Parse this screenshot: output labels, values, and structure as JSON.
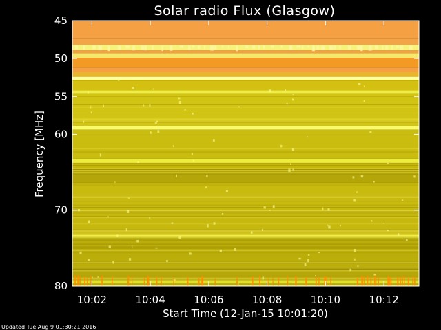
{
  "chart_data": {
    "type": "heatmap",
    "title": "Solar radio Flux (Glasgow)",
    "xlabel": "Start Time (12-Jan-15 10:01:20)",
    "ylabel": "Frequency [MHz]",
    "x_unit": "minutes of day",
    "xlim": [
      601.33,
      613.2
    ],
    "ylim": [
      45,
      80
    ],
    "x_ticks": [
      {
        "value": 602,
        "label": "10:02"
      },
      {
        "value": 604,
        "label": "10:04"
      },
      {
        "value": 606,
        "label": "10:06"
      },
      {
        "value": 608,
        "label": "10:08"
      },
      {
        "value": 610,
        "label": "10:10"
      },
      {
        "value": 612,
        "label": "10:12"
      }
    ],
    "y_ticks": [
      {
        "value": 45,
        "label": "45"
      },
      {
        "value": 50,
        "label": "50"
      },
      {
        "value": 55,
        "label": "55"
      },
      {
        "value": 60,
        "label": "60"
      },
      {
        "value": 70,
        "label": "70"
      },
      {
        "value": 80,
        "label": "80"
      }
    ],
    "frequency_bands": [
      {
        "f0": 45.0,
        "f1": 47.3,
        "color": "#f5a043"
      },
      {
        "f0": 47.3,
        "f1": 48.2,
        "color": "#f2a447"
      },
      {
        "f0": 48.2,
        "f1": 48.9,
        "color": "#f6f27a"
      },
      {
        "f0": 48.9,
        "f1": 49.3,
        "color": "#f5a043"
      },
      {
        "f0": 49.3,
        "f1": 49.9,
        "color": "#f5e86a"
      },
      {
        "f0": 49.9,
        "f1": 51.2,
        "color": "#f29a24"
      },
      {
        "f0": 51.2,
        "f1": 51.8,
        "color": "#f5a043"
      },
      {
        "f0": 51.8,
        "f1": 52.4,
        "color": "#e7b62a"
      },
      {
        "f0": 52.4,
        "f1": 52.8,
        "color": "#ffffa0"
      },
      {
        "f0": 52.8,
        "f1": 54.2,
        "color": "#d4c010"
      },
      {
        "f0": 54.2,
        "f1": 54.6,
        "color": "#f0ee40"
      },
      {
        "f0": 54.6,
        "f1": 58.9,
        "color": "#d2c412"
      },
      {
        "f0": 58.9,
        "f1": 59.4,
        "color": "#fbfb6a"
      },
      {
        "f0": 59.4,
        "f1": 63.2,
        "color": "#cbbd10"
      },
      {
        "f0": 63.2,
        "f1": 63.8,
        "color": "#eeec3a"
      },
      {
        "f0": 63.8,
        "f1": 64.6,
        "color": "#c6b60c"
      },
      {
        "f0": 64.6,
        "f1": 66.4,
        "color": "#b4a608"
      },
      {
        "f0": 66.4,
        "f1": 69.6,
        "color": "#c8ba0e"
      },
      {
        "f0": 69.6,
        "f1": 73.2,
        "color": "#c6b80e"
      },
      {
        "f0": 73.2,
        "f1": 73.7,
        "color": "#f3f148"
      },
      {
        "f0": 73.7,
        "f1": 77.8,
        "color": "#bcae0a"
      },
      {
        "f0": 77.8,
        "f1": 79.2,
        "color": "#b4a608"
      },
      {
        "f0": 79.2,
        "f1": 79.7,
        "color": "#e2de2c"
      },
      {
        "f0": 79.7,
        "f1": 80.0,
        "color": "#b8aa0a"
      }
    ],
    "colors": {
      "frame": "#ffffff",
      "text": "#ffffff",
      "spike": "#ff8c00",
      "bright": "#ffff9a"
    },
    "footer": "Updated Tue Aug  9 01:30:21 2016"
  }
}
